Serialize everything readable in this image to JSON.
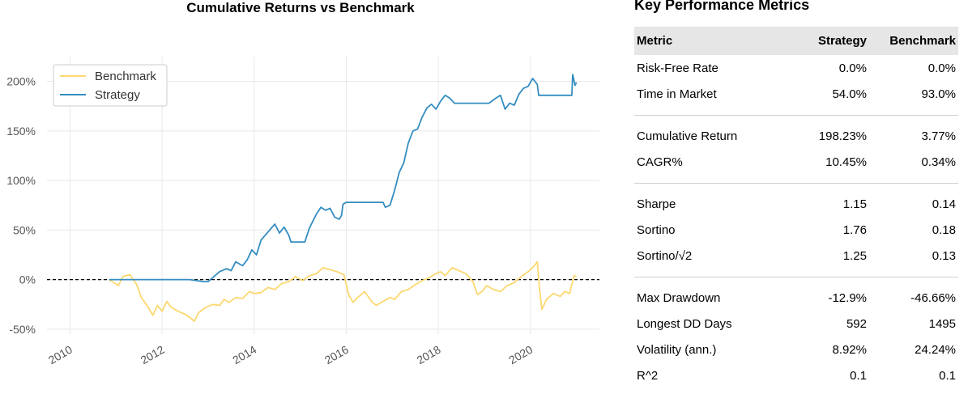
{
  "chart_data": {
    "type": "line",
    "title": "Cumulative Returns vs Benchmark",
    "xlabel": "",
    "ylabel": "",
    "xlim": [
      2009.5,
      2021.5
    ],
    "ylim": [
      -55,
      225
    ],
    "x_ticks": [
      2010,
      2012,
      2014,
      2016,
      2018,
      2020
    ],
    "x_tick_labels": [
      "2010",
      "2012",
      "2014",
      "2016",
      "2018",
      "2020"
    ],
    "y_ticks": [
      -50,
      0,
      50,
      100,
      150,
      200
    ],
    "y_tick_labels": [
      "-50%",
      "0%",
      "50%",
      "100%",
      "150%",
      "200%"
    ],
    "grid": true,
    "legend_position": "top-left",
    "reference_line": {
      "y": 0,
      "style": "dashed",
      "color": "#000000"
    },
    "series": [
      {
        "name": "Benchmark",
        "color": "#fcd86f",
        "points": [
          [
            2010.85,
            0
          ],
          [
            2010.95,
            -3
          ],
          [
            2011.05,
            -6
          ],
          [
            2011.15,
            3
          ],
          [
            2011.3,
            5
          ],
          [
            2011.45,
            -5
          ],
          [
            2011.55,
            -18
          ],
          [
            2011.7,
            -28
          ],
          [
            2011.8,
            -36
          ],
          [
            2011.9,
            -26
          ],
          [
            2012.0,
            -32
          ],
          [
            2012.1,
            -22
          ],
          [
            2012.2,
            -28
          ],
          [
            2012.35,
            -32
          ],
          [
            2012.5,
            -35
          ],
          [
            2012.6,
            -38
          ],
          [
            2012.7,
            -42
          ],
          [
            2012.8,
            -33
          ],
          [
            2012.95,
            -28
          ],
          [
            2013.1,
            -25
          ],
          [
            2013.25,
            -26
          ],
          [
            2013.35,
            -20
          ],
          [
            2013.45,
            -23
          ],
          [
            2013.6,
            -18
          ],
          [
            2013.75,
            -19
          ],
          [
            2013.9,
            -12
          ],
          [
            2014.0,
            -14
          ],
          [
            2014.15,
            -13
          ],
          [
            2014.3,
            -8
          ],
          [
            2014.45,
            -10
          ],
          [
            2014.6,
            -4
          ],
          [
            2014.75,
            -2
          ],
          [
            2014.9,
            3
          ],
          [
            2015.05,
            -1
          ],
          [
            2015.2,
            4
          ],
          [
            2015.35,
            6
          ],
          [
            2015.5,
            12
          ],
          [
            2015.65,
            10
          ],
          [
            2015.8,
            8
          ],
          [
            2015.95,
            5
          ],
          [
            2016.05,
            -15
          ],
          [
            2016.15,
            -23
          ],
          [
            2016.25,
            -18
          ],
          [
            2016.4,
            -12
          ],
          [
            2016.55,
            -22
          ],
          [
            2016.65,
            -26
          ],
          [
            2016.8,
            -22
          ],
          [
            2016.95,
            -18
          ],
          [
            2017.05,
            -20
          ],
          [
            2017.2,
            -12
          ],
          [
            2017.35,
            -10
          ],
          [
            2017.5,
            -5
          ],
          [
            2017.65,
            -1
          ],
          [
            2017.8,
            2
          ],
          [
            2017.95,
            6
          ],
          [
            2018.05,
            8
          ],
          [
            2018.15,
            4
          ],
          [
            2018.3,
            12
          ],
          [
            2018.45,
            9
          ],
          [
            2018.6,
            6
          ],
          [
            2018.75,
            -2
          ],
          [
            2018.85,
            -15
          ],
          [
            2018.95,
            -12
          ],
          [
            2019.05,
            -6
          ],
          [
            2019.2,
            -10
          ],
          [
            2019.35,
            -12
          ],
          [
            2019.5,
            -6
          ],
          [
            2019.65,
            -3
          ],
          [
            2019.8,
            3
          ],
          [
            2019.95,
            8
          ],
          [
            2020.05,
            12
          ],
          [
            2020.15,
            18
          ],
          [
            2020.2,
            -10
          ],
          [
            2020.25,
            -30
          ],
          [
            2020.35,
            -20
          ],
          [
            2020.5,
            -14
          ],
          [
            2020.65,
            -17
          ],
          [
            2020.75,
            -12
          ],
          [
            2020.85,
            -14
          ],
          [
            2020.95,
            4
          ],
          [
            2021.0,
            3
          ]
        ]
      },
      {
        "name": "Strategy",
        "color": "#348dc1",
        "points": [
          [
            2010.85,
            0
          ],
          [
            2011.0,
            0
          ],
          [
            2011.3,
            0
          ],
          [
            2011.6,
            0
          ],
          [
            2012.0,
            0
          ],
          [
            2012.3,
            0
          ],
          [
            2012.6,
            0
          ],
          [
            2012.9,
            -2
          ],
          [
            2013.0,
            -2
          ],
          [
            2013.1,
            2
          ],
          [
            2013.25,
            8
          ],
          [
            2013.4,
            11
          ],
          [
            2013.5,
            9
          ],
          [
            2013.6,
            18
          ],
          [
            2013.75,
            14
          ],
          [
            2013.85,
            20
          ],
          [
            2013.95,
            30
          ],
          [
            2014.05,
            25
          ],
          [
            2014.15,
            40
          ],
          [
            2014.3,
            48
          ],
          [
            2014.45,
            56
          ],
          [
            2014.55,
            47
          ],
          [
            2014.65,
            53
          ],
          [
            2014.75,
            45
          ],
          [
            2014.8,
            38
          ],
          [
            2015.1,
            38
          ],
          [
            2015.2,
            52
          ],
          [
            2015.35,
            66
          ],
          [
            2015.45,
            73
          ],
          [
            2015.55,
            70
          ],
          [
            2015.65,
            72
          ],
          [
            2015.75,
            63
          ],
          [
            2015.85,
            61
          ],
          [
            2015.9,
            65
          ],
          [
            2015.93,
            76
          ],
          [
            2016.0,
            78
          ],
          [
            2016.5,
            78
          ],
          [
            2016.8,
            78
          ],
          [
            2016.85,
            73
          ],
          [
            2016.95,
            75
          ],
          [
            2017.05,
            90
          ],
          [
            2017.15,
            108
          ],
          [
            2017.25,
            118
          ],
          [
            2017.35,
            138
          ],
          [
            2017.45,
            150
          ],
          [
            2017.55,
            152
          ],
          [
            2017.65,
            164
          ],
          [
            2017.75,
            173
          ],
          [
            2017.85,
            177
          ],
          [
            2017.95,
            172
          ],
          [
            2018.05,
            180
          ],
          [
            2018.15,
            186
          ],
          [
            2018.25,
            183
          ],
          [
            2018.35,
            178
          ],
          [
            2018.5,
            178
          ],
          [
            2018.8,
            178
          ],
          [
            2019.1,
            178
          ],
          [
            2019.25,
            183
          ],
          [
            2019.35,
            186
          ],
          [
            2019.45,
            172
          ],
          [
            2019.55,
            178
          ],
          [
            2019.65,
            176
          ],
          [
            2019.75,
            187
          ],
          [
            2019.85,
            193
          ],
          [
            2019.95,
            195
          ],
          [
            2020.05,
            203
          ],
          [
            2020.15,
            197
          ],
          [
            2020.18,
            186
          ],
          [
            2020.6,
            186
          ],
          [
            2020.9,
            186
          ],
          [
            2020.92,
            207
          ],
          [
            2020.97,
            196
          ],
          [
            2021.0,
            199
          ]
        ]
      }
    ]
  },
  "metrics_table": {
    "title": "Key Performance Metrics",
    "headers": [
      "Metric",
      "Strategy",
      "Benchmark"
    ],
    "groups": [
      [
        [
          "Risk-Free Rate",
          "0.0%",
          "0.0%"
        ],
        [
          "Time in Market",
          "54.0%",
          "93.0%"
        ]
      ],
      [
        [
          "Cumulative Return",
          "198.23%",
          "3.77%"
        ],
        [
          "CAGR%",
          "10.45%",
          "0.34%"
        ]
      ],
      [
        [
          "Sharpe",
          "1.15",
          "0.14"
        ],
        [
          "Sortino",
          "1.76",
          "0.18"
        ],
        [
          "Sortino/√2",
          "1.25",
          "0.13"
        ]
      ],
      [
        [
          "Max Drawdown",
          "-12.9%",
          "-46.66%"
        ],
        [
          "Longest DD Days",
          "592",
          "1495"
        ],
        [
          "Volatility (ann.)",
          "8.92%",
          "24.24%"
        ],
        [
          "R^2",
          "0.1",
          "0.1"
        ]
      ]
    ]
  }
}
